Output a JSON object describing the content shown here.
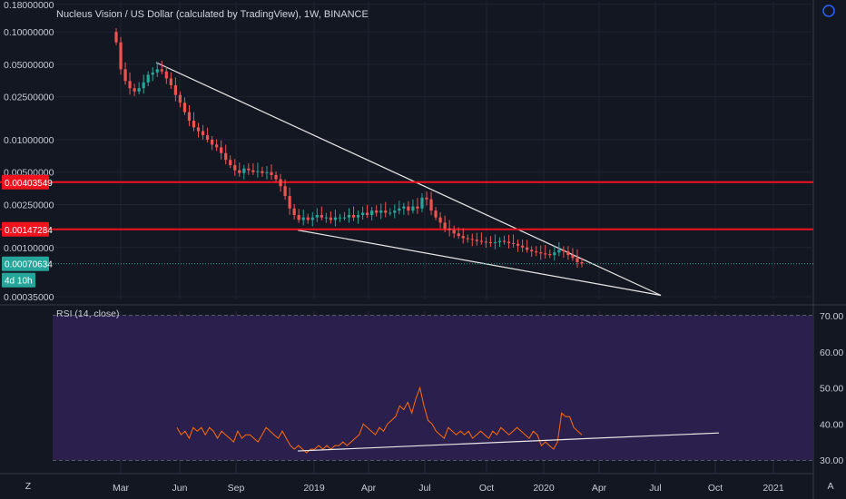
{
  "title": "Nucleus Vision / US Dollar (calculated by TradingView), 1W, BINANCE",
  "price_axis": {
    "ticks": [
      "0.18000000",
      "0.10000000",
      "0.05000000",
      "0.02500000",
      "0.01000000",
      "0.00500000",
      "0.00250000",
      "0.00100000",
      "0.00035000"
    ]
  },
  "price_badges": [
    {
      "text": "0.00403549",
      "color": "#f0131e",
      "value": 0.00403549
    },
    {
      "text": "0.00147284",
      "color": "#f0131e",
      "value": 0.00147284
    },
    {
      "text": "0.00070634",
      "color": "#26a69a",
      "value": 0.00070634
    },
    {
      "text": "4d 10h",
      "color": "#26a69a"
    }
  ],
  "time_axis": {
    "ticks": [
      "Mar",
      "Jun",
      "Sep",
      "2019",
      "Apr",
      "Jul",
      "Oct",
      "2020",
      "Apr",
      "Jul",
      "Oct",
      "2021"
    ]
  },
  "rsi": {
    "label": "RSI (14, close)",
    "ticks": [
      "70.00",
      "60.00",
      "50.00",
      "40.00",
      "30.00"
    ],
    "upper": 70,
    "lower": 30,
    "values": [
      39,
      37,
      38,
      36,
      39,
      38,
      39,
      37,
      39,
      38,
      36,
      38,
      37,
      36,
      35,
      38,
      36,
      37,
      37,
      36,
      35,
      37,
      39,
      38,
      37,
      36,
      38,
      36,
      34,
      33,
      34,
      33,
      32,
      33,
      33,
      34,
      33,
      34,
      33,
      34,
      34,
      35,
      34,
      35,
      36,
      37,
      40,
      39,
      38,
      37,
      39,
      38,
      40,
      41,
      42,
      45,
      44,
      46,
      43,
      47,
      50,
      45,
      41,
      40,
      38,
      37,
      36,
      39,
      38,
      37,
      38,
      37,
      38,
      36,
      37,
      38,
      37,
      36,
      38,
      37,
      39,
      38,
      37,
      38,
      39,
      38,
      37,
      36,
      38,
      37,
      34,
      35,
      34,
      33,
      35,
      43,
      42,
      42,
      39,
      38,
      37
    ]
  },
  "chart_data": {
    "type": "line",
    "title": "Nucleus Vision / US Dollar (calculated by TradingView), 1W, BINANCE",
    "scale": "log",
    "ylim": [
      0.00033,
      0.19
    ],
    "close": [
      0.08,
      0.045,
      0.035,
      0.03,
      0.028,
      0.03,
      0.034,
      0.04,
      0.042,
      0.045,
      0.043,
      0.037,
      0.032,
      0.026,
      0.022,
      0.018,
      0.015,
      0.013,
      0.012,
      0.011,
      0.01,
      0.009,
      0.0085,
      0.0075,
      0.0065,
      0.0058,
      0.0052,
      0.0049,
      0.0054,
      0.0052,
      0.005,
      0.0051,
      0.0049,
      0.005,
      0.0047,
      0.0043,
      0.0037,
      0.003,
      0.0023,
      0.002,
      0.0018,
      0.0019,
      0.0018,
      0.0019,
      0.002,
      0.0019,
      0.0019,
      0.0018,
      0.0019,
      0.0019,
      0.0019,
      0.002,
      0.0019,
      0.002,
      0.0021,
      0.002,
      0.0022,
      0.0021,
      0.0022,
      0.0021,
      0.0021,
      0.0022,
      0.0023,
      0.0024,
      0.0022,
      0.0024,
      0.0023,
      0.0029,
      0.0028,
      0.0022,
      0.0019,
      0.0017,
      0.0015,
      0.00145,
      0.00135,
      0.00128,
      0.00122,
      0.0012,
      0.00118,
      0.00115,
      0.00113,
      0.00112,
      0.0011,
      0.00112,
      0.00115,
      0.00113,
      0.0011,
      0.00108,
      0.00104,
      0.001,
      0.00095,
      0.00092,
      0.0009,
      0.00088,
      0.00087,
      0.00085,
      0.0009,
      0.00095,
      0.00092,
      0.00085,
      0.0008,
      0.00073,
      0.00071
    ],
    "trendlines": [
      {
        "from": [
          "2018-04",
          "0.052"
        ],
        "to": [
          "2020-07",
          "0.00036"
        ]
      },
      {
        "from": [
          "2018-11",
          "0.00145"
        ],
        "to": [
          "2020-07",
          "0.00036"
        ]
      }
    ],
    "horizontal_levels": [
      0.00403549,
      0.00147284
    ],
    "last_price": 0.00070634
  }
}
